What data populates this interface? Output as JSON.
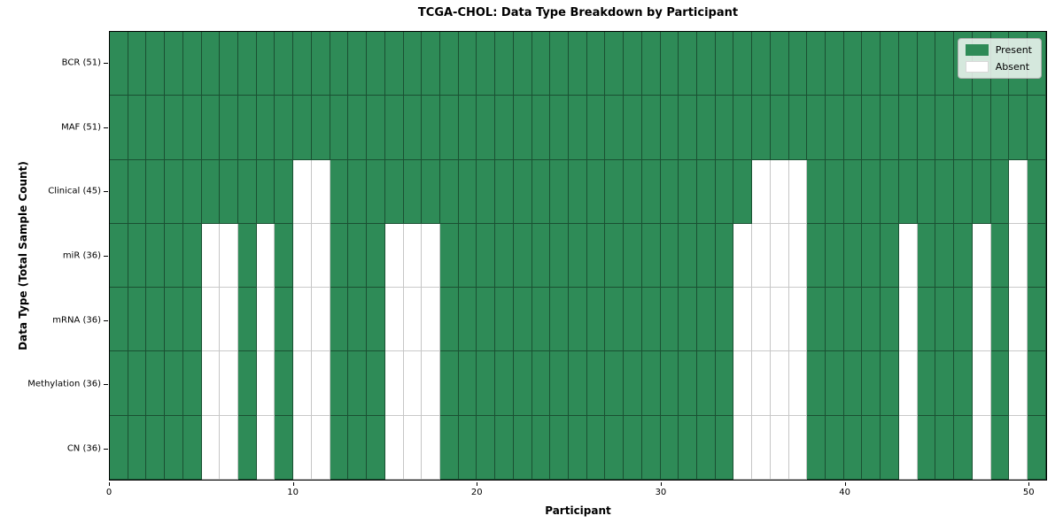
{
  "colors": {
    "present": "#2e8b57",
    "absent": "#ffffff",
    "grid_line_on_present": "rgba(0,0,0,0.42)",
    "grid_line_on_absent": "#c6c6c6",
    "frame": "#000000",
    "legend_background": "rgba(255,255,255,0.8)",
    "legend_border": "#b0b0b0"
  },
  "chart_data": {
    "type": "heatmap",
    "title": "TCGA-CHOL: Data Type Breakdown by Participant",
    "x_axis": {
      "label": "Participant",
      "min": 0,
      "max": 51,
      "ticks": [
        0,
        10,
        20,
        30,
        40,
        50
      ]
    },
    "y_axis": {
      "label": "Data Type (Total Sample Count)"
    },
    "n_participants": 51,
    "legend": [
      {
        "label": "Present",
        "color": "#2e8b57"
      },
      {
        "label": "Absent",
        "color": "#ffffff"
      }
    ],
    "rows": [
      {
        "label": "BCR (51)",
        "data_type": "BCR",
        "present_count": 51,
        "absent_participants": []
      },
      {
        "label": "MAF (51)",
        "data_type": "MAF",
        "present_count": 51,
        "absent_participants": []
      },
      {
        "label": "Clinical (45)",
        "data_type": "Clinical",
        "present_count": 45,
        "absent_participants": [
          10,
          11,
          35,
          36,
          37,
          49
        ]
      },
      {
        "label": "miR (36)",
        "data_type": "miR",
        "present_count": 36,
        "absent_participants": [
          5,
          6,
          8,
          10,
          11,
          15,
          16,
          17,
          34,
          35,
          36,
          37,
          43,
          47,
          49
        ]
      },
      {
        "label": "mRNA (36)",
        "data_type": "mRNA",
        "present_count": 36,
        "absent_participants": [
          5,
          6,
          8,
          10,
          11,
          15,
          16,
          17,
          34,
          35,
          36,
          37,
          43,
          47,
          49
        ]
      },
      {
        "label": "Methylation (36)",
        "data_type": "Methylation",
        "present_count": 36,
        "absent_participants": [
          5,
          6,
          8,
          10,
          11,
          15,
          16,
          17,
          34,
          35,
          36,
          37,
          43,
          47,
          49
        ]
      },
      {
        "label": "CN (36)",
        "data_type": "CN",
        "present_count": 36,
        "absent_participants": [
          5,
          6,
          8,
          10,
          11,
          15,
          16,
          17,
          34,
          35,
          36,
          37,
          43,
          47,
          49
        ]
      }
    ]
  }
}
